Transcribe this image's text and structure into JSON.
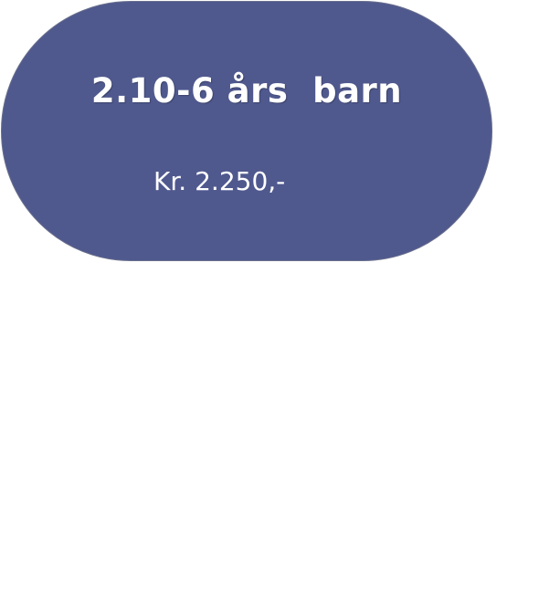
{
  "card": {
    "title": "2.10-6 års  barn",
    "price": "Kr. 2.250,-",
    "background_color": "#4f598e",
    "text_color": "#ffffff"
  }
}
